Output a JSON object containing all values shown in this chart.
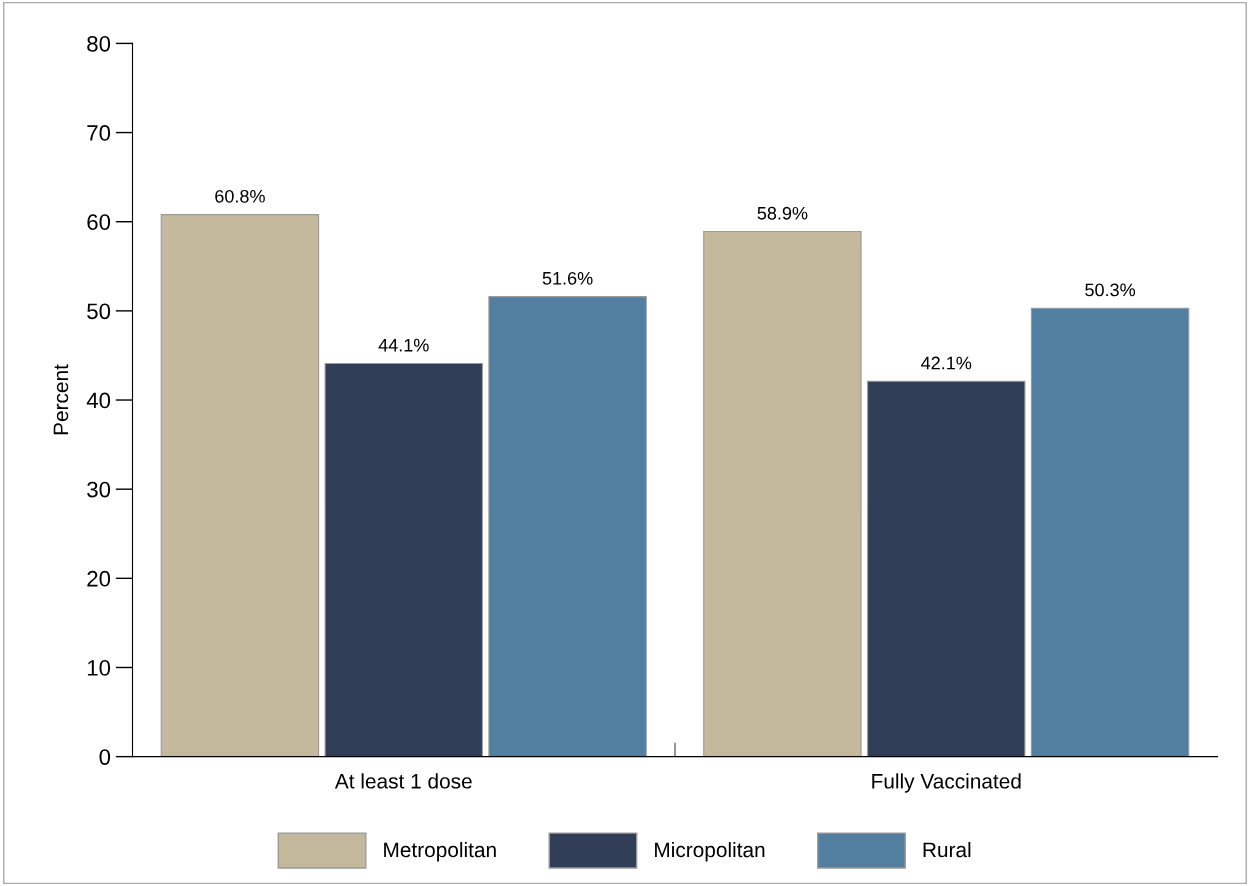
{
  "chart_data": {
    "type": "bar",
    "ylabel": "Percent",
    "categories": [
      "At least 1 dose",
      "Fully Vaccinated"
    ],
    "series": [
      {
        "name": "Metropolitan",
        "color": "#c5b99d",
        "values": [
          60.8,
          58.9
        ],
        "value_labels": [
          "60.8%",
          "58.9%"
        ]
      },
      {
        "name": "Micropolitan",
        "color": "#313e58",
        "values": [
          44.1,
          42.1
        ],
        "value_labels": [
          "44.1%",
          "42.1%"
        ]
      },
      {
        "name": "Rural",
        "color": "#527f9f",
        "values": [
          51.6,
          50.3
        ],
        "value_labels": [
          "51.6%",
          "50.3%"
        ]
      }
    ],
    "ylim": [
      0,
      80
    ],
    "yticks": [
      0,
      10,
      20,
      30,
      40,
      50,
      60,
      70,
      80
    ],
    "grid": false,
    "legend": "bottom"
  }
}
